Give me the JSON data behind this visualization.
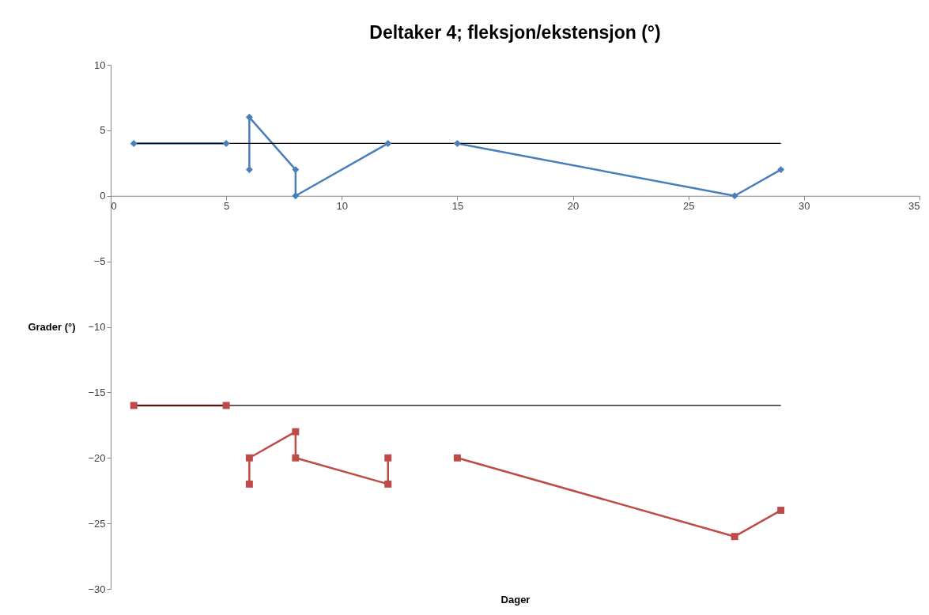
{
  "chart_data": {
    "type": "line",
    "title": "Deltaker 4; fleksjon/ekstensjon (°)",
    "xlabel": "Dager",
    "ylabel": "Grader (°)",
    "xlim": [
      0,
      35
    ],
    "xticks": [
      0,
      5,
      10,
      15,
      20,
      25,
      30,
      35
    ],
    "ylim": [
      -30,
      10
    ],
    "yticks": [
      -30,
      -25,
      -20,
      -15,
      -10,
      -5,
      0,
      5,
      10
    ],
    "grid": false,
    "legend": false,
    "line_style": "solid",
    "series": [
      {
        "color": "#4a7ebb",
        "marker": "diamond",
        "x": [
          1,
          5
        ],
        "values": [
          4,
          4
        ]
      },
      {
        "color": "#4a7ebb",
        "marker": "diamond",
        "x": [
          6,
          6,
          8,
          8,
          12
        ],
        "values": [
          2,
          6,
          2,
          0,
          4
        ]
      },
      {
        "color": "#4a7ebb",
        "marker": "diamond",
        "x": [
          15,
          27,
          29
        ],
        "values": [
          4,
          0,
          2
        ]
      },
      {
        "color": "#be4b48",
        "marker": "square",
        "x": [
          1,
          5
        ],
        "values": [
          -16,
          -16
        ]
      },
      {
        "color": "#be4b48",
        "marker": "square",
        "x": [
          6,
          6,
          8,
          8,
          12,
          12
        ],
        "values": [
          -22,
          -20,
          -18,
          -20,
          -22,
          -20
        ]
      },
      {
        "color": "#be4b48",
        "marker": "square",
        "x": [
          15,
          27,
          29
        ],
        "values": [
          -20,
          -26,
          -24
        ]
      },
      {
        "color": "#000000",
        "marker": "none",
        "x": [
          1,
          29
        ],
        "values": [
          4,
          4
        ]
      },
      {
        "color": "#000000",
        "marker": "none",
        "x": [
          1,
          29
        ],
        "values": [
          -16,
          -16
        ]
      }
    ]
  }
}
